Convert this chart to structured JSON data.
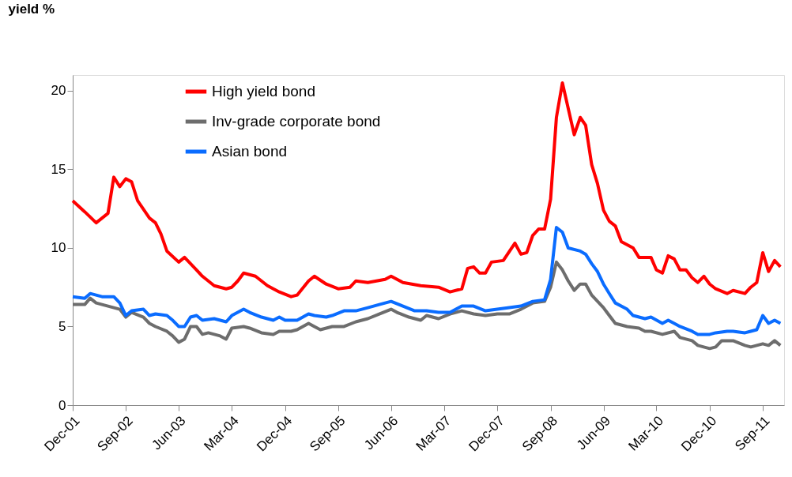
{
  "chart_data": {
    "type": "line",
    "ylabel": "yield %",
    "xlim": [
      "2001-12",
      "2011-12-20"
    ],
    "ylim": [
      0,
      21
    ],
    "yticks": [
      0,
      5,
      10,
      15,
      20
    ],
    "xticks": [
      {
        "value": "2001-12",
        "label": "Dec-01"
      },
      {
        "value": "2002-09",
        "label": "Sep-02"
      },
      {
        "value": "2003-06",
        "label": "Jun-03"
      },
      {
        "value": "2004-03",
        "label": "Mar-04"
      },
      {
        "value": "2004-12",
        "label": "Dec-04"
      },
      {
        "value": "2005-09",
        "label": "Sep-05"
      },
      {
        "value": "2006-06",
        "label": "Jun-06"
      },
      {
        "value": "2007-03",
        "label": "Mar-07"
      },
      {
        "value": "2007-12",
        "label": "Dec-07"
      },
      {
        "value": "2008-09",
        "label": "Sep-08"
      },
      {
        "value": "2009-06",
        "label": "Jun-09"
      },
      {
        "value": "2010-03",
        "label": "Mar-10"
      },
      {
        "value": "2010-12",
        "label": "Dec-10"
      },
      {
        "value": "2011-09",
        "label": "Sep-11"
      }
    ],
    "grid": false,
    "legend": "top left",
    "marker": "none",
    "line_style": "solid",
    "series": [
      {
        "name": "High yield bond",
        "color": "#ff0000",
        "x": [
          "2001-12",
          "2002-02",
          "2002-04",
          "2002-06",
          "2002-07",
          "2002-08",
          "2002-09",
          "2002-10",
          "2002-11",
          "2003-01",
          "2003-02",
          "2003-03",
          "2003-04",
          "2003-06",
          "2003-07",
          "2003-09",
          "2003-10",
          "2003-12",
          "2004-02",
          "2004-03",
          "2004-04",
          "2004-05",
          "2004-07",
          "2004-09",
          "2004-11",
          "2005-01",
          "2005-02",
          "2005-04",
          "2005-05",
          "2005-07",
          "2005-09",
          "2005-11",
          "2005-12",
          "2006-02",
          "2006-05",
          "2006-06",
          "2006-08",
          "2006-11",
          "2007-02",
          "2007-04",
          "2007-06",
          "2007-07",
          "2007-08",
          "2007-09",
          "2007-10",
          "2007-11",
          "2008-01",
          "2008-03",
          "2008-04",
          "2008-05",
          "2008-06",
          "2008-07",
          "2008-08",
          "2008-09",
          "2008-10",
          "2008-11",
          "2009-01",
          "2009-02",
          "2009-03",
          "2009-04",
          "2009-05",
          "2009-06",
          "2009-07",
          "2009-08",
          "2009-09",
          "2009-11",
          "2009-12",
          "2010-02",
          "2010-03",
          "2010-04",
          "2010-05",
          "2010-06",
          "2010-07",
          "2010-08",
          "2010-09",
          "2010-10",
          "2010-11",
          "2010-12",
          "2011-01",
          "2011-03",
          "2011-04",
          "2011-06",
          "2011-07",
          "2011-08",
          "2011-09",
          "2011-10",
          "2011-11",
          "2011-12"
        ],
        "values": [
          13.0,
          12.3,
          11.6,
          12.2,
          14.5,
          13.9,
          14.4,
          14.2,
          13.0,
          11.9,
          11.6,
          10.9,
          9.8,
          9.1,
          9.4,
          8.6,
          8.2,
          7.6,
          7.4,
          7.5,
          7.9,
          8.4,
          8.2,
          7.6,
          7.2,
          6.9,
          7.0,
          7.9,
          8.2,
          7.7,
          7.4,
          7.5,
          7.9,
          7.8,
          8.0,
          8.2,
          7.8,
          7.6,
          7.5,
          7.2,
          7.4,
          8.7,
          8.8,
          8.4,
          8.4,
          9.1,
          9.2,
          10.3,
          9.6,
          9.7,
          10.8,
          11.2,
          11.2,
          13.1,
          18.3,
          20.5,
          17.2,
          18.3,
          17.8,
          15.3,
          14.1,
          12.4,
          11.7,
          11.4,
          10.4,
          10.0,
          9.4,
          9.4,
          8.6,
          8.4,
          9.5,
          9.3,
          8.6,
          8.6,
          8.1,
          7.8,
          8.2,
          7.7,
          7.4,
          7.1,
          7.3,
          7.1,
          7.5,
          7.8,
          9.7,
          8.5,
          9.2,
          8.8
        ]
      },
      {
        "name": "Inv-grade corporate bond",
        "color": "#6d6d6d",
        "x": [
          "2001-12",
          "2002-02",
          "2002-03",
          "2002-04",
          "2002-06",
          "2002-08",
          "2002-09",
          "2002-10",
          "2002-12",
          "2003-01",
          "2003-02",
          "2003-04",
          "2003-05",
          "2003-06",
          "2003-07",
          "2003-08",
          "2003-09",
          "2003-10",
          "2003-11",
          "2004-01",
          "2004-02",
          "2004-03",
          "2004-05",
          "2004-06",
          "2004-08",
          "2004-10",
          "2004-11",
          "2005-01",
          "2005-02",
          "2005-04",
          "2005-05",
          "2005-06",
          "2005-08",
          "2005-10",
          "2005-12",
          "2006-02",
          "2006-04",
          "2006-06",
          "2006-07",
          "2006-09",
          "2006-11",
          "2006-12",
          "2007-02",
          "2007-04",
          "2007-06",
          "2007-08",
          "2007-10",
          "2007-12",
          "2008-02",
          "2008-04",
          "2008-06",
          "2008-08",
          "2008-09",
          "2008-10",
          "2008-11",
          "2008-12",
          "2009-01",
          "2009-02",
          "2009-03",
          "2009-04",
          "2009-06",
          "2009-07",
          "2009-08",
          "2009-10",
          "2009-12",
          "2010-01",
          "2010-02",
          "2010-04",
          "2010-06",
          "2010-07",
          "2010-09",
          "2010-10",
          "2010-12",
          "2011-01",
          "2011-02",
          "2011-04",
          "2011-06",
          "2011-07",
          "2011-08",
          "2011-09",
          "2011-10",
          "2011-11",
          "2011-12"
        ],
        "values": [
          6.4,
          6.4,
          6.8,
          6.5,
          6.3,
          6.1,
          5.6,
          5.9,
          5.6,
          5.2,
          5.0,
          4.7,
          4.4,
          4.0,
          4.2,
          5.0,
          5.0,
          4.5,
          4.6,
          4.4,
          4.2,
          4.9,
          5.0,
          4.9,
          4.6,
          4.5,
          4.7,
          4.7,
          4.8,
          5.2,
          5.0,
          4.8,
          5.0,
          5.0,
          5.3,
          5.5,
          5.8,
          6.1,
          5.9,
          5.6,
          5.4,
          5.7,
          5.5,
          5.8,
          6.0,
          5.8,
          5.7,
          5.8,
          5.8,
          6.1,
          6.5,
          6.6,
          7.5,
          9.1,
          8.6,
          7.9,
          7.3,
          7.7,
          7.7,
          7.0,
          6.2,
          5.7,
          5.2,
          5.0,
          4.9,
          4.7,
          4.7,
          4.5,
          4.7,
          4.3,
          4.1,
          3.8,
          3.6,
          3.7,
          4.1,
          4.1,
          3.8,
          3.7,
          3.8,
          3.9,
          3.8,
          4.1,
          3.8
        ]
      },
      {
        "name": "Asian bond",
        "color": "#0a6cff",
        "x": [
          "2001-12",
          "2002-02",
          "2002-03",
          "2002-05",
          "2002-07",
          "2002-08",
          "2002-09",
          "2002-10",
          "2002-12",
          "2003-01",
          "2003-02",
          "2003-04",
          "2003-05",
          "2003-06",
          "2003-07",
          "2003-08",
          "2003-09",
          "2003-10",
          "2003-12",
          "2004-01",
          "2004-02",
          "2004-03",
          "2004-05",
          "2004-06",
          "2004-08",
          "2004-10",
          "2004-11",
          "2004-12",
          "2005-02",
          "2005-04",
          "2005-05",
          "2005-07",
          "2005-08",
          "2005-10",
          "2005-12",
          "2006-02",
          "2006-04",
          "2006-06",
          "2006-08",
          "2006-10",
          "2006-12",
          "2007-02",
          "2007-04",
          "2007-06",
          "2007-08",
          "2007-10",
          "2007-12",
          "2008-02",
          "2008-04",
          "2008-06",
          "2008-08",
          "2008-09",
          "2008-10",
          "2008-11",
          "2008-12",
          "2009-02",
          "2009-03",
          "2009-04",
          "2009-05",
          "2009-06",
          "2009-07",
          "2009-08",
          "2009-10",
          "2009-11",
          "2010-01",
          "2010-02",
          "2010-04",
          "2010-05",
          "2010-06",
          "2010-07",
          "2010-09",
          "2010-10",
          "2010-12",
          "2011-01",
          "2011-03",
          "2011-04",
          "2011-06",
          "2011-07",
          "2011-08",
          "2011-09",
          "2011-10",
          "2011-11",
          "2011-12"
        ],
        "values": [
          6.9,
          6.8,
          7.1,
          6.9,
          6.9,
          6.5,
          5.7,
          6.0,
          6.1,
          5.7,
          5.8,
          5.7,
          5.4,
          5.0,
          5.0,
          5.6,
          5.7,
          5.4,
          5.5,
          5.4,
          5.3,
          5.7,
          6.1,
          5.9,
          5.6,
          5.4,
          5.6,
          5.4,
          5.4,
          5.8,
          5.7,
          5.6,
          5.7,
          6.0,
          6.0,
          6.2,
          6.4,
          6.6,
          6.3,
          6.0,
          6.0,
          5.9,
          5.9,
          6.3,
          6.3,
          6.0,
          6.1,
          6.2,
          6.3,
          6.6,
          6.7,
          8.0,
          11.3,
          11.0,
          10.0,
          9.8,
          9.6,
          9.0,
          8.5,
          7.7,
          7.1,
          6.5,
          6.1,
          5.7,
          5.5,
          5.6,
          5.2,
          5.4,
          5.2,
          5.0,
          4.7,
          4.5,
          4.5,
          4.6,
          4.7,
          4.7,
          4.6,
          4.7,
          4.8,
          5.7,
          5.2,
          5.4,
          5.2
        ]
      }
    ]
  }
}
